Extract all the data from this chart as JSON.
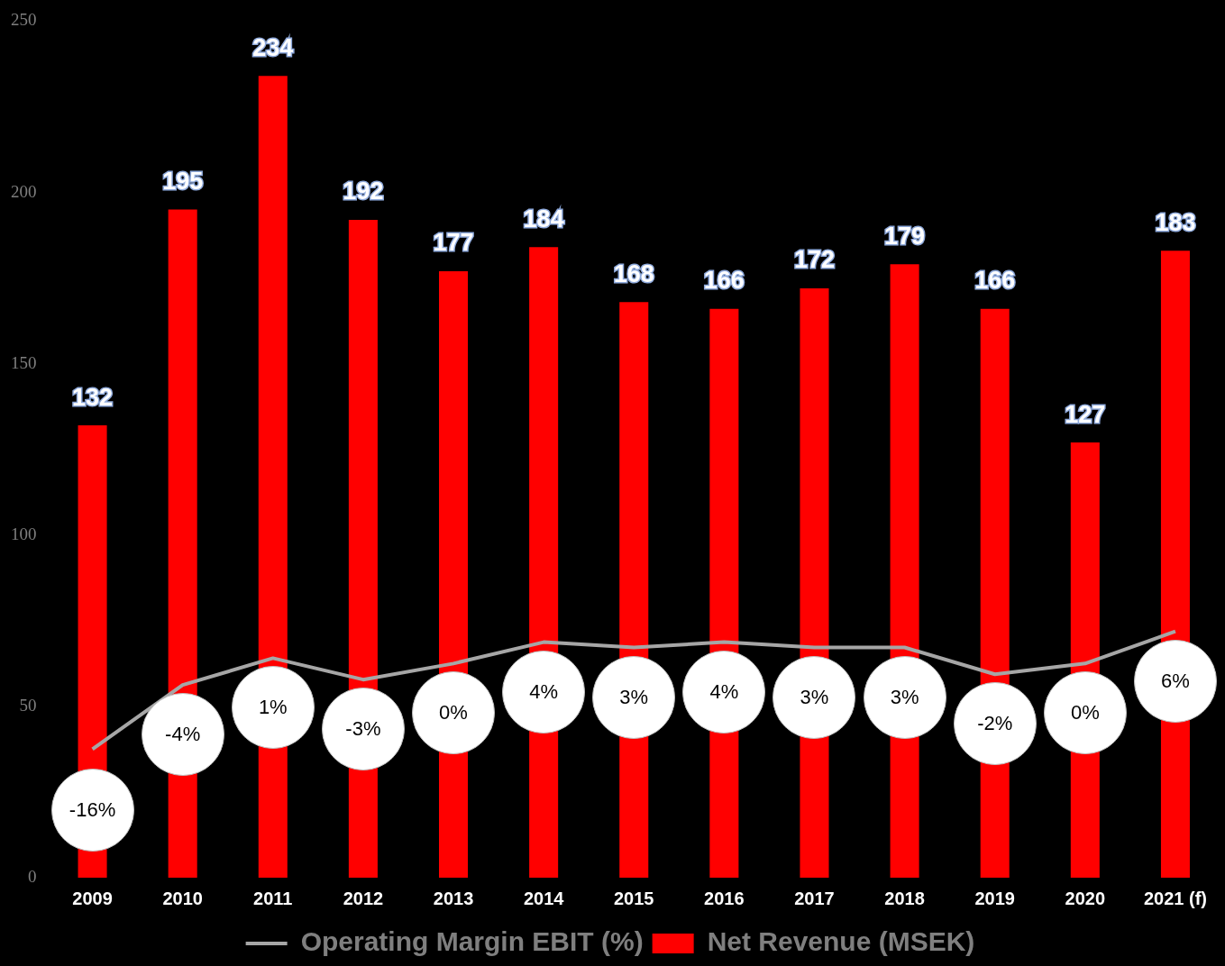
{
  "chart_data": {
    "type": "bar",
    "categories": [
      "2009",
      "2010",
      "2011",
      "2012",
      "2013",
      "2014",
      "2015",
      "2016",
      "2017",
      "2018",
      "2019",
      "2020",
      "2021 (f)"
    ],
    "series": [
      {
        "name": "Net Revenue (MSEK)",
        "color": "#ff0000",
        "values": [
          132,
          195,
          234,
          192,
          177,
          184,
          168,
          166,
          172,
          179,
          166,
          127,
          183
        ],
        "value_labels": [
          "132",
          "195",
          "234",
          "192",
          "177",
          "184",
          "168",
          "166",
          "172",
          "179",
          "166",
          "127",
          "183"
        ]
      },
      {
        "name": "Operating Margin EBIT (%)",
        "type": "line",
        "axis": "y2",
        "color": "#a6a6a6",
        "values": [
          -16,
          -4,
          1,
          -3,
          0,
          4,
          3,
          4,
          3,
          3,
          -2,
          0,
          6
        ],
        "value_labels": [
          "-16%",
          "-4%",
          "1%",
          "-3%",
          "0%",
          "4%",
          "3%",
          "4%",
          "3%",
          "3%",
          "-2%",
          "0%",
          "6%"
        ]
      }
    ],
    "ylim": [
      0,
      250
    ],
    "yticks": [
      0,
      50,
      100,
      150,
      200,
      250
    ],
    "grid": false,
    "legend": "bottom"
  }
}
